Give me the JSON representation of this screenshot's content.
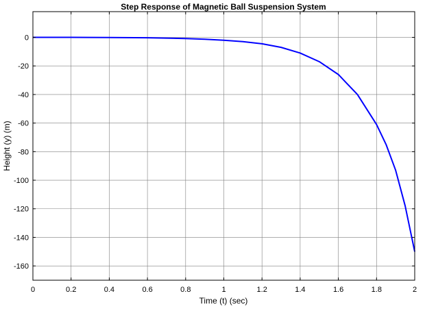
{
  "chart_data": {
    "type": "line",
    "title": "Step Response of Magnetic Ball Suspension System",
    "xlabel": "Time (t) (sec)",
    "ylabel": "Height (y) (m)",
    "xlim": [
      0,
      2
    ],
    "ylim": [
      -170,
      18
    ],
    "xticks": [
      0,
      0.2,
      0.4,
      0.6,
      0.8,
      1,
      1.2,
      1.4,
      1.6,
      1.8,
      2
    ],
    "xtick_labels": [
      "0",
      "0.2",
      "0.4",
      "0.6",
      "0.8",
      "1",
      "1.2",
      "1.4",
      "1.6",
      "1.8",
      "2"
    ],
    "yticks": [
      0,
      -20,
      -40,
      -60,
      -80,
      -100,
      -120,
      -140,
      -160
    ],
    "ytick_labels": [
      "0",
      "-20",
      "-40",
      "-60",
      "-80",
      "-100",
      "-120",
      "-140",
      "-160"
    ],
    "grid": true,
    "series": [
      {
        "color": "#0000ff",
        "x": [
          0,
          0.2,
          0.4,
          0.6,
          0.8,
          0.9,
          1.0,
          1.1,
          1.2,
          1.3,
          1.4,
          1.5,
          1.6,
          1.7,
          1.8,
          1.85,
          1.9,
          1.95,
          2.0
        ],
        "y": [
          0,
          0,
          -0.1,
          -0.3,
          -0.8,
          -1.3,
          -2.0,
          -3.0,
          -4.5,
          -7.0,
          -11.0,
          -17.0,
          -26.0,
          -40.0,
          -61.0,
          -75.0,
          -93.0,
          -118.0,
          -150.0
        ]
      }
    ]
  }
}
